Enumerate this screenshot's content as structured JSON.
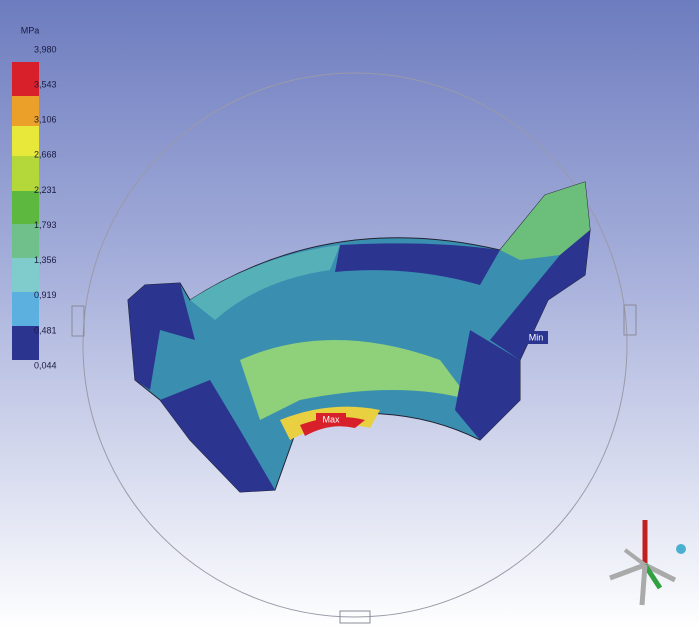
{
  "legend": {
    "unit": "MPa",
    "labels": [
      "3,980",
      "3,543",
      "3,106",
      "2,668",
      "2,231",
      "1,793",
      "1,356",
      "0,919",
      "0,481",
      "0,044"
    ]
  },
  "annotations": {
    "max": "Max",
    "min": "Min"
  }
}
